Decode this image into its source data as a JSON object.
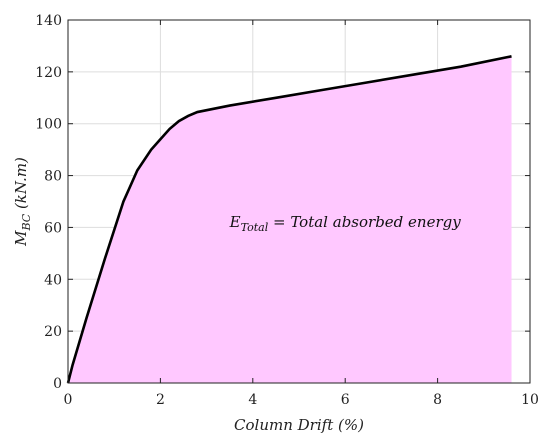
{
  "chart_data": {
    "type": "area",
    "title": "",
    "xlabel": "Column Drift (%)",
    "ylabel_main": "M",
    "ylabel_sub": "BC",
    "ylabel_unit": " (kN.m)",
    "xlim": [
      0,
      10
    ],
    "ylim": [
      0,
      140
    ],
    "xticks": [
      0,
      2,
      4,
      6,
      8,
      10
    ],
    "yticks": [
      0,
      20,
      40,
      60,
      80,
      100,
      120,
      140
    ],
    "grid": true,
    "fill_color": "#ffc8ff",
    "line_color": "#000000",
    "series": [
      {
        "x": [
          0,
          0.1,
          0.4,
          0.8,
          1.2,
          1.5,
          1.8,
          2.0,
          2.2,
          2.4,
          2.6,
          2.8,
          3.5,
          4.5,
          5.5,
          6.5,
          7.5,
          8.5,
          9.6
        ],
        "y": [
          0,
          7,
          25,
          48,
          70,
          82,
          90,
          94,
          98,
          101,
          103,
          104.5,
          107,
          110,
          113,
          116,
          119,
          122,
          126
        ]
      }
    ],
    "annotation": {
      "symbol": "E",
      "subscript": "Total",
      "text": " = Total absorbed energy",
      "x": 6,
      "y": 62
    }
  }
}
